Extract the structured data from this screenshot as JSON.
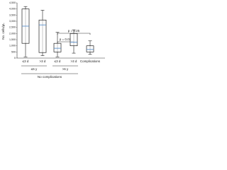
{
  "chart_data": {
    "type": "box",
    "y_label": "No. cells/μL",
    "categories": [
      "≤3 d",
      ">3 d",
      "≤3 d",
      ">3 d",
      "Complications"
    ],
    "boxes": [
      {
        "min": 100,
        "q1": 1200,
        "median": 2600,
        "q3": 4000,
        "max": 4200
      },
      {
        "min": 200,
        "q1": 450,
        "median": 2700,
        "q3": 3100,
        "max": 3900
      },
      {
        "min": 100,
        "q1": 500,
        "median": 800,
        "q3": 1200,
        "max": 2100
      },
      {
        "min": 400,
        "q1": 1000,
        "median": 1300,
        "q3": 2000,
        "max": 2300
      },
      {
        "min": 300,
        "q1": 500,
        "median": 700,
        "q3": 1000,
        "max": 1400
      }
    ],
    "box_color": "#ffffff",
    "point_color": "#5b8fc9",
    "groups": [
      "≤6 y",
      ">6 y",
      "No complications"
    ],
    "annotations": [
      "p = 0.25",
      "p = 0.01"
    ],
    "ylim": [
      0,
      4500
    ],
    "yticks": [
      0,
      500,
      {
        "value": 1000,
        "label": "1,000"
      },
      {
        "value": 1500,
        "label": "1,500"
      },
      {
        "value": 2000,
        "label": "2,000"
      },
      {
        "value": 2500,
        "label": "2,500"
      },
      {
        "value": 3000,
        "label": "3,000"
      },
      {
        "value": 3500,
        "label": "3,500"
      },
      {
        "value": 4000,
        "label": "4,000"
      },
      {
        "value": 4500,
        "label": "4,500"
      }
    ]
  }
}
